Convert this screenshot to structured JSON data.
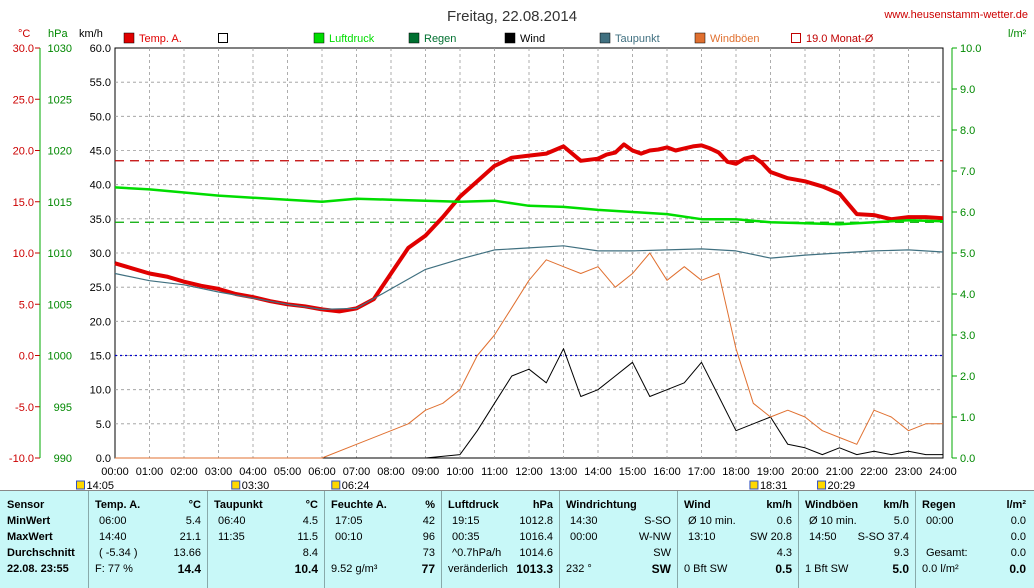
{
  "chart_data": {
    "type": "line",
    "title": "Freitag, 22.08.2014",
    "source": "www.heusenstamm-wetter.de",
    "axis_units": {
      "temp": "°C",
      "pressure": "hPa",
      "speed": "km/h",
      "rain": "l/m²"
    },
    "x_ticks": [
      "00:00",
      "01:00",
      "02:00",
      "03:00",
      "04:00",
      "05:00",
      "06:00",
      "07:00",
      "08:00",
      "09:00",
      "10:00",
      "11:00",
      "12:00",
      "13:00",
      "14:00",
      "15:00",
      "16:00",
      "17:00",
      "18:00",
      "19:00",
      "20:00",
      "21:00",
      "22:00",
      "23:00",
      "24:00"
    ],
    "temp_ticks": [
      "30.0",
      "25.0",
      "20.0",
      "15.0",
      "10.0",
      "5.0",
      "0.0",
      "-5.0",
      "-10.0"
    ],
    "pressure_ticks": [
      "1030",
      "1025",
      "1020",
      "1015",
      "1010",
      "1005",
      "1000",
      "995",
      "990"
    ],
    "speed_ticks": [
      "60.0",
      "55.0",
      "50.0",
      "45.0",
      "40.0",
      "35.0",
      "30.0",
      "25.0",
      "20.0",
      "15.0",
      "10.0",
      "5.0",
      "0.0"
    ],
    "rain_ticks": [
      "10.0",
      "9.0",
      "8.0",
      "7.0",
      "6.0",
      "5.0",
      "4.0",
      "3.0",
      "2.0",
      "1.0",
      "0.0"
    ],
    "ylim_temp": [
      -10,
      30
    ],
    "ylim_pressure": [
      990,
      1030
    ],
    "ylim_speed": [
      0,
      60
    ],
    "ylim_rain": [
      0,
      10
    ],
    "grid": true,
    "legend_position": "top",
    "legend": [
      {
        "label": "Temp. A.",
        "color": "#e00000",
        "style": "box"
      },
      {
        "label": "",
        "color": "#000000",
        "style": "empty"
      },
      {
        "label": "Luftdruck",
        "color": "#00dd00",
        "style": "box"
      },
      {
        "label": "Regen",
        "color": "#007030",
        "style": "box"
      },
      {
        "label": "Wind",
        "color": "#000000",
        "style": "box"
      },
      {
        "label": "Taupunkt",
        "color": "#407080",
        "style": "box"
      },
      {
        "label": "Windböen",
        "color": "#e07030",
        "style": "box"
      },
      {
        "label": "19.0 Monat-Ø",
        "color": "#c00000",
        "style": "outline"
      }
    ],
    "reference_lines": [
      {
        "axis": "temp",
        "value": 19.0,
        "color": "#c00000",
        "style": "dashed",
        "label": "19.0 Monat-Ø"
      },
      {
        "axis": "temp",
        "value": 0.0,
        "color": "#0000cc",
        "style": "dotted"
      },
      {
        "axis": "pressure",
        "value": 1013.0,
        "color": "#00aa00",
        "style": "dashed"
      }
    ],
    "sun_markers": [
      {
        "time": "14:05",
        "x_hours": -1.0
      },
      {
        "time": "03:30",
        "x_hours": 3.5
      },
      {
        "time": "06:24",
        "x_hours": 6.4
      },
      {
        "time": "18:31",
        "x_hours": 18.52
      },
      {
        "time": "20:29",
        "x_hours": 20.48
      }
    ],
    "series": [
      {
        "name": "Temp. A.",
        "axis": "temp",
        "color": "#e00000",
        "x": [
          0,
          0.5,
          1,
          1.5,
          2,
          2.5,
          3,
          3.5,
          4,
          4.5,
          5,
          5.5,
          6,
          6.5,
          7,
          7.5,
          8,
          8.5,
          9,
          9.5,
          10,
          10.5,
          11,
          11.5,
          12,
          12.5,
          13,
          13.5,
          14,
          14.25,
          14.5,
          14.75,
          15,
          15.25,
          15.5,
          15.75,
          16,
          16.25,
          16.5,
          16.75,
          17,
          17.25,
          17.5,
          17.75,
          18,
          18.25,
          18.5,
          18.75,
          19,
          19.5,
          20,
          20.5,
          21,
          21.25,
          21.5,
          22,
          22.5,
          23,
          23.5,
          24
        ],
        "y": [
          9.0,
          8.5,
          8.0,
          7.7,
          7.2,
          6.8,
          6.5,
          6.0,
          5.7,
          5.3,
          5.0,
          4.8,
          4.5,
          4.3,
          4.6,
          5.5,
          8.0,
          10.5,
          11.7,
          13.5,
          15.5,
          17.0,
          18.5,
          19.3,
          19.5,
          19.7,
          20.4,
          19.0,
          19.2,
          19.6,
          19.8,
          20.6,
          20.0,
          19.7,
          20.0,
          20.1,
          20.3,
          20.0,
          20.2,
          20.4,
          20.5,
          20.2,
          19.8,
          18.9,
          18.7,
          19.2,
          19.4,
          18.8,
          17.9,
          17.3,
          17.0,
          16.5,
          15.8,
          14.8,
          13.8,
          13.7,
          13.3,
          13.5,
          13.5,
          13.4
        ]
      },
      {
        "name": "Luftdruck",
        "axis": "pressure",
        "color": "#00dd00",
        "x": [
          0,
          1,
          2,
          3,
          4,
          5,
          6,
          7,
          8,
          9,
          10,
          11,
          12,
          13,
          14,
          15,
          16,
          17,
          18,
          19,
          20,
          21,
          22,
          23,
          24
        ],
        "y": [
          1016.4,
          1016.2,
          1015.9,
          1015.6,
          1015.4,
          1015.2,
          1015.0,
          1015.3,
          1015.2,
          1015.1,
          1015.0,
          1015.1,
          1014.6,
          1014.5,
          1014.2,
          1014.0,
          1013.8,
          1013.3,
          1013.3,
          1013.0,
          1012.9,
          1012.8,
          1013.0,
          1013.2,
          1013.1
        ]
      },
      {
        "name": "Taupunkt",
        "axis": "temp",
        "color": "#407080",
        "x": [
          0,
          1,
          2,
          3,
          4,
          5,
          6,
          7,
          8,
          9,
          10,
          11,
          12,
          13,
          14,
          15,
          16,
          17,
          18,
          19,
          20,
          21,
          22,
          23,
          24
        ],
        "y": [
          8.0,
          7.3,
          6.9,
          6.2,
          5.6,
          5.0,
          4.5,
          4.6,
          6.5,
          8.4,
          9.4,
          10.3,
          10.5,
          10.7,
          10.2,
          10.2,
          10.3,
          10.4,
          10.2,
          9.5,
          9.8,
          10.0,
          10.2,
          10.3,
          10.1
        ]
      },
      {
        "name": "Wind",
        "axis": "speed",
        "color": "#000000",
        "x": [
          0,
          8,
          9,
          10,
          10.5,
          11,
          11.5,
          12,
          12.5,
          13,
          13.5,
          14,
          14.5,
          15,
          15.5,
          16,
          16.5,
          17,
          17.5,
          18,
          18.5,
          19,
          19.5,
          20,
          20.5,
          21,
          21.5,
          22,
          22.5,
          23,
          23.5,
          24
        ],
        "y": [
          0,
          0,
          0,
          0.5,
          4,
          8,
          12,
          13,
          11,
          16,
          9,
          10,
          12,
          14,
          9,
          10,
          11,
          14,
          9,
          4,
          5,
          6,
          2,
          1.5,
          0.5,
          1.5,
          0.5,
          1,
          0.5,
          1,
          0.5,
          0.5
        ]
      },
      {
        "name": "Windböen",
        "axis": "speed",
        "color": "#e07030",
        "x": [
          0,
          6,
          7,
          8,
          8.5,
          9,
          9.5,
          10,
          10.5,
          11,
          11.5,
          12,
          12.5,
          13,
          13.5,
          14,
          14.5,
          15,
          15.5,
          16,
          16.5,
          17,
          17.5,
          18,
          18.5,
          19,
          19.5,
          20,
          20.5,
          21,
          21.5,
          22,
          22.5,
          23,
          23.5,
          24
        ],
        "y": [
          0,
          0,
          2,
          4,
          5,
          7,
          8,
          10,
          15,
          18,
          22,
          26,
          29,
          28,
          27,
          28,
          25,
          27,
          30,
          26,
          28,
          26,
          27,
          16,
          8,
          6,
          7,
          6,
          4,
          3,
          2,
          7,
          6,
          4,
          5,
          5
        ]
      }
    ]
  },
  "table": {
    "headers": [
      {
        "label": "Sensor",
        "unit": ""
      },
      {
        "label": "Temp. A.",
        "unit": "°C"
      },
      {
        "label": "Taupunkt",
        "unit": "°C"
      },
      {
        "label": "Feuchte A.",
        "unit": "%"
      },
      {
        "label": "Luftdruck",
        "unit": "hPa"
      },
      {
        "label": "Windrichtung",
        "unit": ""
      },
      {
        "label": "Wind",
        "unit": "km/h"
      },
      {
        "label": "Windböen",
        "unit": "km/h"
      },
      {
        "label": "Regen",
        "unit": "l/m²"
      }
    ],
    "row_labels": [
      "MinWert",
      "MaxWert",
      "Durchschnitt"
    ],
    "footer_label": "22.08. 23:55",
    "temp": {
      "rows": [
        [
          "06:00",
          "5.4"
        ],
        [
          "14:40",
          "21.1"
        ],
        [
          "( -5.34 )",
          "13.66"
        ]
      ],
      "foot": [
        "F: 77 %",
        "14.4"
      ]
    },
    "dew": {
      "rows": [
        [
          "06:40",
          "4.5"
        ],
        [
          "11:35",
          "11.5"
        ],
        [
          "",
          "8.4"
        ]
      ],
      "foot": [
        "",
        "10.4"
      ]
    },
    "hum": {
      "rows": [
        [
          "17:05",
          "42"
        ],
        [
          "00:10",
          "96"
        ],
        [
          "",
          "73"
        ]
      ],
      "foot": [
        "9.52 g/m³",
        "77"
      ]
    },
    "press": {
      "rows": [
        [
          "19:15",
          "1012.8"
        ],
        [
          "00:35",
          "1016.4"
        ],
        [
          "^0.7hPa/h",
          "1014.6"
        ]
      ],
      "foot": [
        "veränderlich",
        "1013.3"
      ]
    },
    "dir": {
      "rows": [
        [
          "14:30",
          "S-SO"
        ],
        [
          "00:00",
          "W-NW"
        ],
        [
          "",
          "SW"
        ]
      ],
      "foot": [
        "232 °",
        "SW"
      ]
    },
    "wind": {
      "rows": [
        [
          "Ø 10 min.",
          "0.6"
        ],
        [
          "13:10",
          "SW 20.8"
        ],
        [
          "",
          "4.3"
        ]
      ],
      "foot": [
        "0 Bft SW",
        "0.5"
      ]
    },
    "gust": {
      "rows": [
        [
          "Ø 10 min.",
          "5.0"
        ],
        [
          "14:50",
          "S-SO 37.4"
        ],
        [
          "",
          "9.3"
        ]
      ],
      "foot": [
        "1 Bft SW",
        "5.0"
      ]
    },
    "rain": {
      "rows": [
        [
          "00:00",
          "0.0"
        ],
        [
          "",
          "0.0"
        ],
        [
          "Gesamt:",
          "0.0"
        ]
      ],
      "foot": [
        "0.0 l/m²",
        "0.0"
      ]
    }
  }
}
